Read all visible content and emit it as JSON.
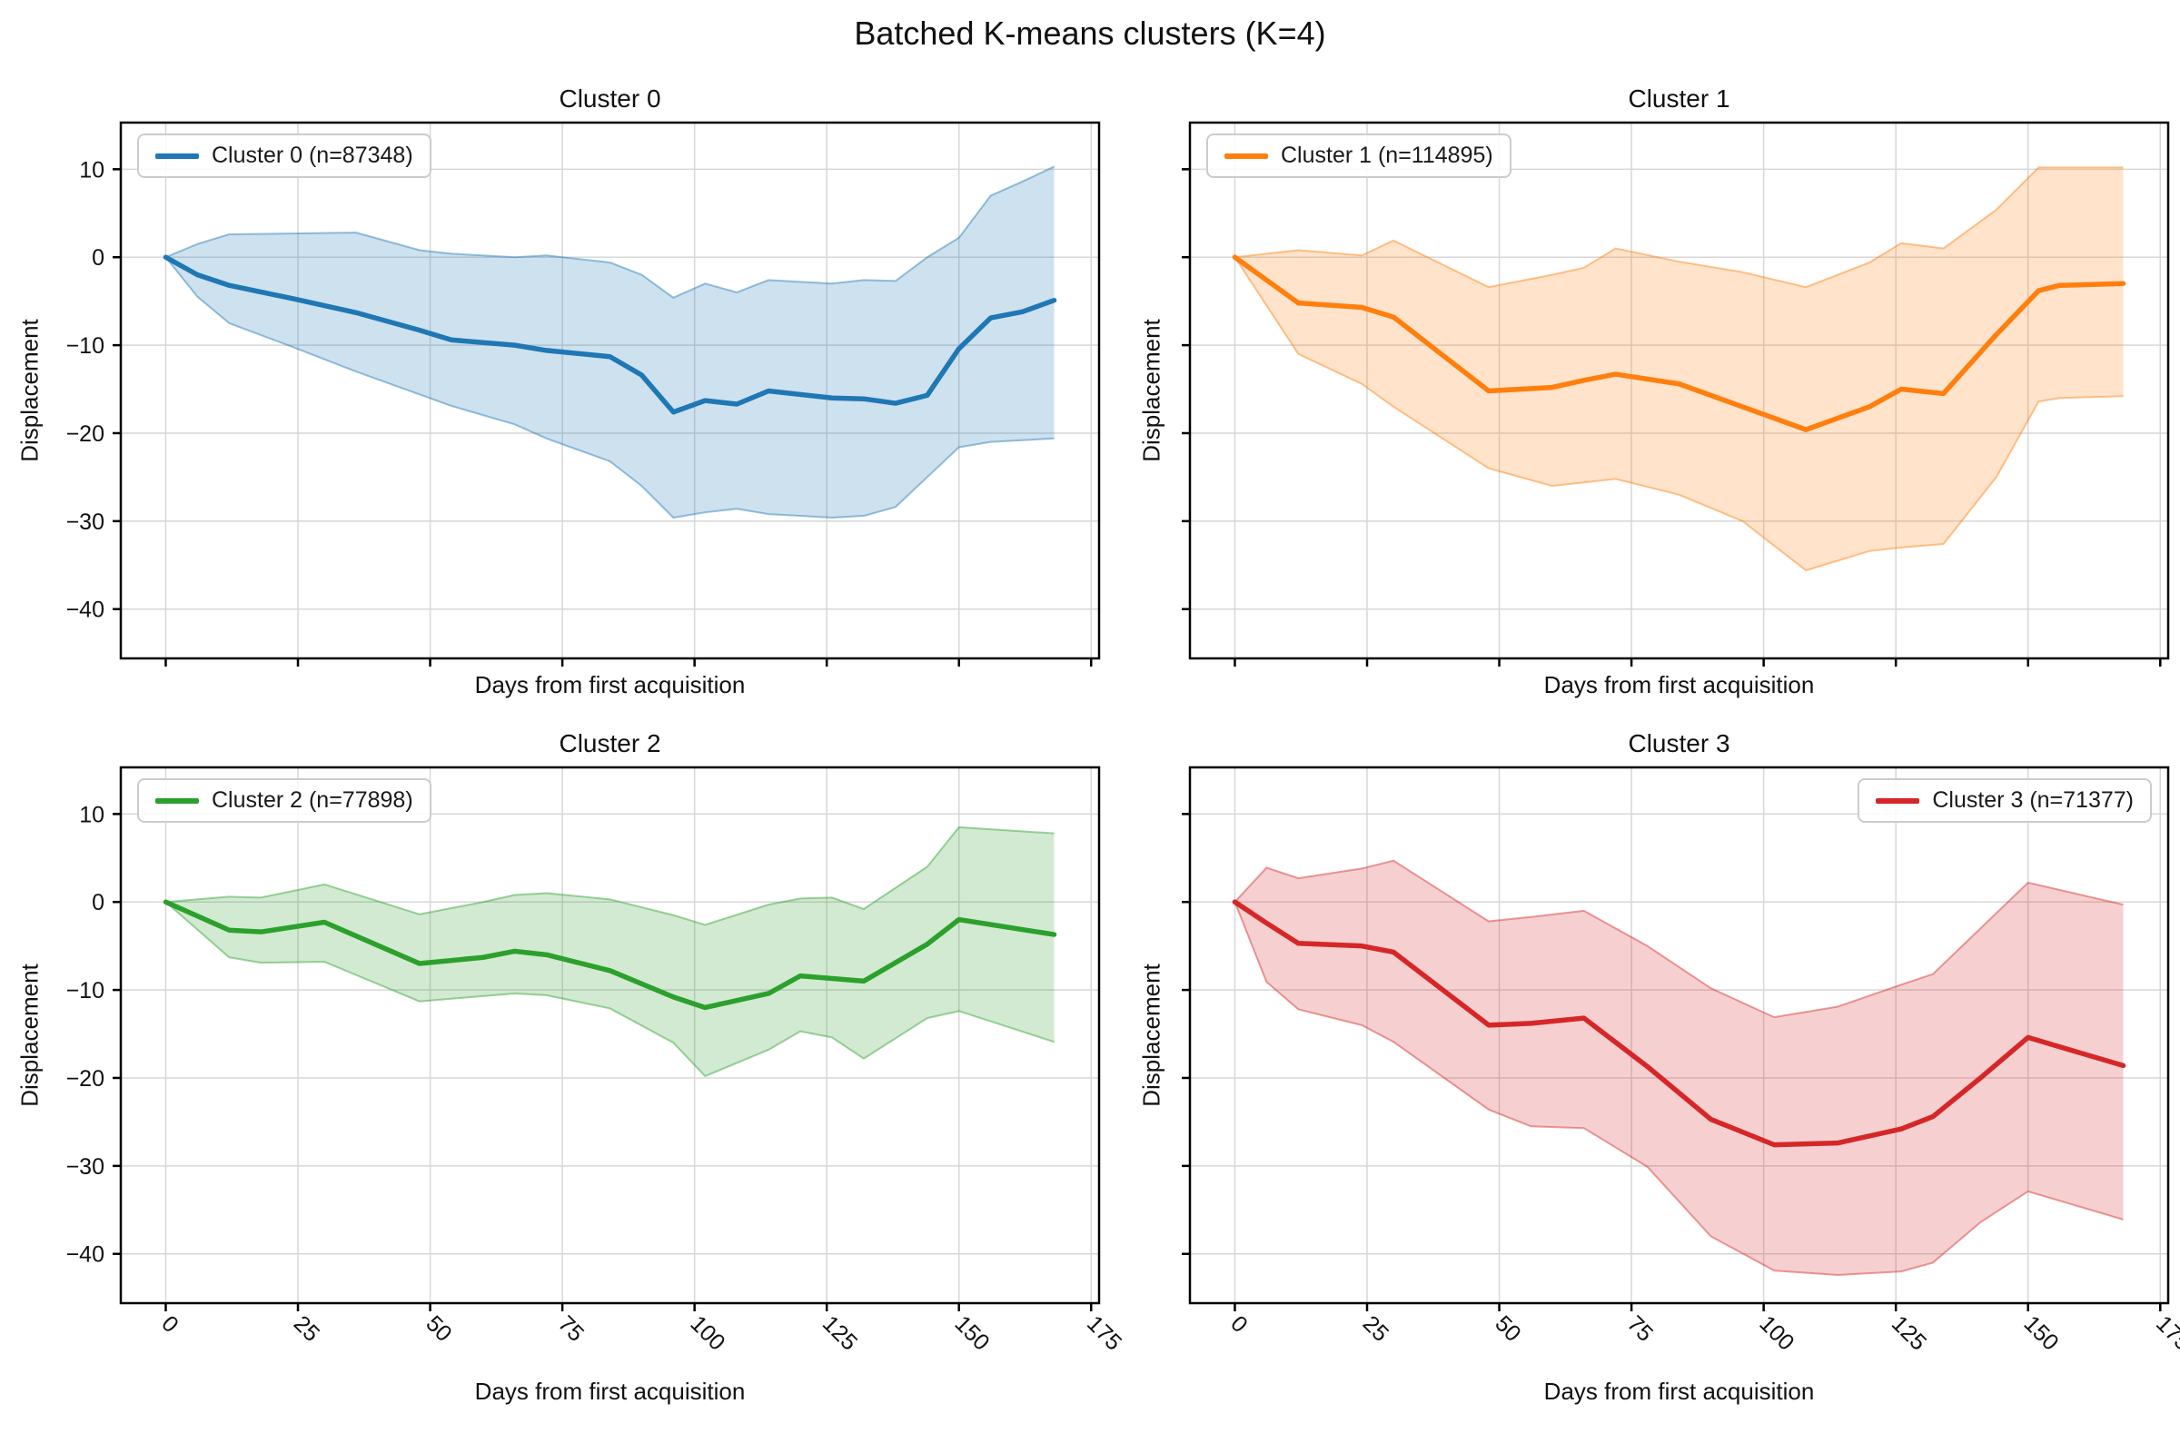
{
  "figure": {
    "suptitle": "Batched K-means clusters (K=4)"
  },
  "chart_data": {
    "type": "line",
    "title": "Batched K-means clusters (K=4)",
    "xlabel": "Days from first acquisition",
    "ylabel": "Displacement",
    "xlim": [
      -8.5,
      176.5
    ],
    "ylim": [
      -45.6,
      15.3
    ],
    "grid": true,
    "grid_color": "#d7d7d7",
    "axis_color": "#000000",
    "x_ticks": {
      "values": [
        0,
        25,
        50,
        75,
        100,
        125,
        150,
        175
      ],
      "labels": [
        "0",
        "25",
        "50",
        "75",
        "100",
        "125",
        "150",
        "175"
      ]
    },
    "y_ticks": {
      "values": [
        10,
        0,
        -10,
        -20,
        -30,
        -40
      ],
      "labels": [
        "10",
        "0",
        "−10",
        "−20",
        "−30",
        "−40"
      ]
    },
    "subplots": [
      {
        "title": "Cluster 0",
        "legend_label": "Cluster 0 (n=87348)",
        "n": 87348,
        "color": "#1f77b4",
        "legend_position": "upper left",
        "show_x_tick_labels": false,
        "show_y_tick_labels": true,
        "series": {
          "x": [
            0,
            6,
            12,
            24,
            36,
            48,
            54,
            66,
            72,
            84,
            90,
            96,
            102,
            108,
            114,
            126,
            132,
            138,
            144,
            150,
            156,
            162,
            168
          ],
          "mean": [
            0,
            -2.0,
            -3.2,
            -4.7,
            -6.3,
            -8.3,
            -9.4,
            -10.0,
            -10.6,
            -11.3,
            -13.4,
            -17.6,
            -16.3,
            -16.7,
            -15.2,
            -16.0,
            -16.1,
            -16.6,
            -15.7,
            -10.4,
            -6.9,
            -6.2,
            -4.9
          ],
          "upper": [
            0,
            1.5,
            2.6,
            2.7,
            2.8,
            0.8,
            0.4,
            0.0,
            0.2,
            -0.6,
            -2.0,
            -4.6,
            -3.0,
            -4.0,
            -2.6,
            -3.0,
            -2.6,
            -2.7,
            0.0,
            2.2,
            7.0,
            8.6,
            10.3
          ],
          "lower": [
            0,
            -4.5,
            -7.5,
            -10.2,
            -13.0,
            -15.6,
            -16.9,
            -19.0,
            -20.6,
            -23.2,
            -26.0,
            -29.6,
            -29.0,
            -28.6,
            -29.2,
            -29.6,
            -29.4,
            -28.4,
            -25.0,
            -21.6,
            -21.0,
            -20.8,
            -20.6
          ]
        }
      },
      {
        "title": "Cluster 1",
        "legend_label": "Cluster 1 (n=114895)",
        "n": 114895,
        "color": "#ff7f0e",
        "legend_position": "upper left",
        "show_x_tick_labels": false,
        "show_y_tick_labels": false,
        "series": {
          "x": [
            0,
            12,
            24,
            30,
            48,
            60,
            66,
            72,
            84,
            96,
            108,
            120,
            126,
            134,
            144,
            152,
            156,
            168
          ],
          "mean": [
            0,
            -5.2,
            -5.7,
            -6.8,
            -15.2,
            -14.8,
            -14.0,
            -13.3,
            -14.4,
            -17.0,
            -19.6,
            -17.0,
            -15.0,
            -15.5,
            -8.8,
            -3.8,
            -3.2,
            -3.0
          ],
          "upper": [
            0,
            0.8,
            0.2,
            1.9,
            -3.4,
            -2.0,
            -1.2,
            1.0,
            -0.5,
            -1.7,
            -3.4,
            -0.6,
            1.6,
            1.0,
            5.4,
            10.2,
            10.2,
            10.2
          ],
          "lower": [
            0,
            -11.0,
            -14.4,
            -17.0,
            -24.0,
            -26.0,
            -25.6,
            -25.2,
            -27.0,
            -30.0,
            -35.6,
            -33.4,
            -33.0,
            -32.6,
            -25.0,
            -16.4,
            -16.0,
            -15.8
          ]
        }
      },
      {
        "title": "Cluster 2",
        "legend_label": "Cluster 2 (n=77898)",
        "n": 77898,
        "color": "#2ca02c",
        "legend_position": "upper left",
        "show_x_tick_labels": true,
        "show_y_tick_labels": true,
        "series": {
          "x": [
            0,
            12,
            18,
            30,
            48,
            60,
            66,
            72,
            84,
            96,
            102,
            114,
            120,
            126,
            132,
            144,
            150,
            168
          ],
          "mean": [
            0,
            -3.2,
            -3.4,
            -2.3,
            -7.0,
            -6.3,
            -5.6,
            -6.0,
            -7.8,
            -10.8,
            -12.0,
            -10.4,
            -8.4,
            -8.7,
            -9.0,
            -4.8,
            -2.0,
            -3.7
          ],
          "upper": [
            0,
            0.6,
            0.5,
            2.0,
            -1.4,
            0.0,
            0.8,
            1.0,
            0.3,
            -1.5,
            -2.6,
            -0.3,
            0.4,
            0.5,
            -0.8,
            4.0,
            8.5,
            7.8
          ],
          "lower": [
            0,
            -6.3,
            -6.9,
            -6.8,
            -11.3,
            -10.7,
            -10.4,
            -10.6,
            -12.1,
            -16.0,
            -19.8,
            -16.8,
            -14.7,
            -15.4,
            -17.8,
            -13.2,
            -12.4,
            -15.9
          ]
        }
      },
      {
        "title": "Cluster 3",
        "legend_label": "Cluster 3 (n=71377)",
        "n": 71377,
        "color": "#d62728",
        "legend_position": "upper right",
        "show_x_tick_labels": true,
        "show_y_tick_labels": false,
        "series": {
          "x": [
            0,
            6,
            12,
            24,
            30,
            48,
            56,
            66,
            78,
            90,
            102,
            114,
            126,
            132,
            141,
            150,
            168
          ],
          "mean": [
            0,
            -2.4,
            -4.7,
            -5.0,
            -5.7,
            -14.0,
            -13.8,
            -13.2,
            -18.7,
            -24.7,
            -27.6,
            -27.4,
            -25.8,
            -24.4,
            -20.0,
            -15.4,
            -18.6
          ],
          "upper": [
            0,
            3.9,
            2.7,
            3.8,
            4.7,
            -2.2,
            -1.7,
            -1.0,
            -5.0,
            -9.8,
            -13.1,
            -11.9,
            -9.4,
            -8.2,
            -3.0,
            2.2,
            -0.3
          ],
          "lower": [
            0,
            -9.1,
            -12.2,
            -14.0,
            -15.9,
            -23.6,
            -25.5,
            -25.7,
            -30.1,
            -38.0,
            -41.9,
            -42.4,
            -42.0,
            -41.0,
            -36.4,
            -32.9,
            -36.1
          ]
        }
      }
    ]
  }
}
